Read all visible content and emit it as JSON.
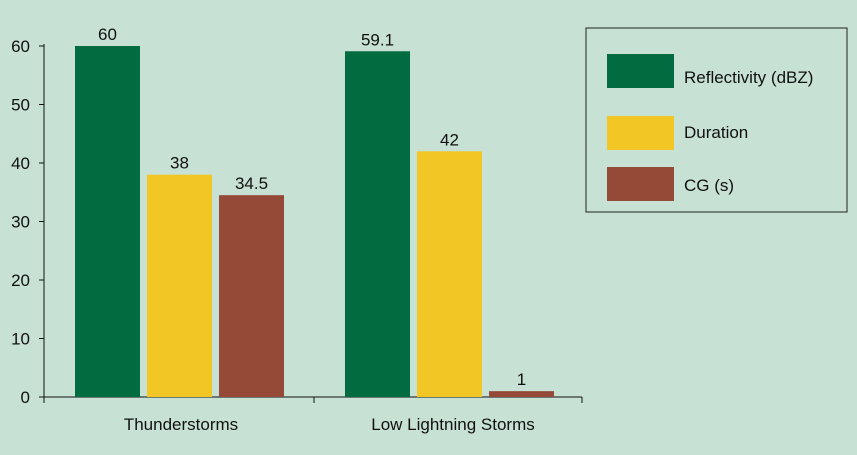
{
  "chart_data": {
    "type": "bar",
    "categories": [
      "Thunderstorms",
      "Low Lightning Storms"
    ],
    "series": [
      {
        "name": "Reflectivity (dBZ)",
        "values": [
          60,
          59.1
        ],
        "data_labels": [
          "60",
          "59.1"
        ],
        "color": "#016c40"
      },
      {
        "name": "Duration",
        "values": [
          38,
          42
        ],
        "data_labels": [
          "38",
          "42"
        ],
        "color": "#f2c624"
      },
      {
        "name": "CG (s)",
        "values": [
          34.5,
          1
        ],
        "data_labels": [
          "34.5",
          "1"
        ],
        "color": "#944a37"
      }
    ],
    "y_ticks": [
      "0",
      "10",
      "20",
      "30",
      "40",
      "50",
      "60"
    ],
    "ylim": [
      0,
      60
    ],
    "grid": false,
    "legend_position": "top-right",
    "background_color": "#c7e1d4"
  }
}
